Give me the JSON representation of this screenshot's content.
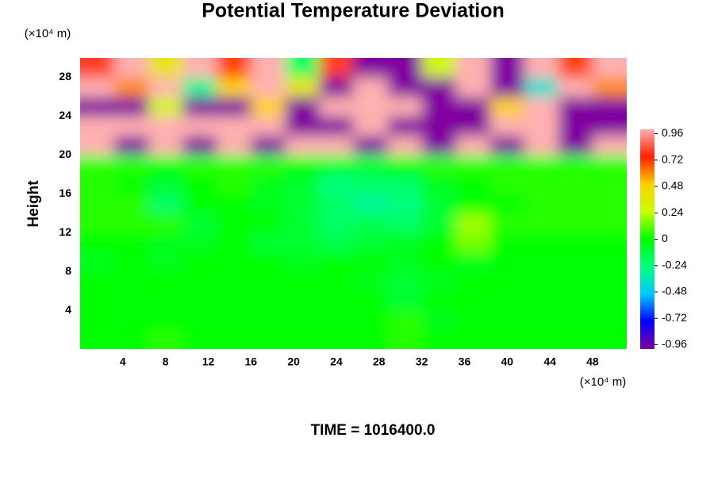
{
  "chart_data": {
    "type": "heatmap",
    "title": "Potential Temperature Deviation",
    "y_unit": "(×10⁴ m)",
    "x_unit": "(×10⁴ m)",
    "ylabel": "Height",
    "caption": "TIME = 1016400.0",
    "xlim": [
      0,
      51.2
    ],
    "ylim": [
      0,
      30
    ],
    "xticks": [
      4,
      8,
      12,
      16,
      20,
      24,
      28,
      32,
      36,
      40,
      44,
      48
    ],
    "yticks": [
      4,
      8,
      12,
      16,
      20,
      24,
      28
    ],
    "xbins": [
      0,
      3.2,
      6.4,
      9.6,
      12.8,
      16,
      19.2,
      22.4,
      25.6,
      28.8,
      32,
      35.2,
      38.4,
      41.6,
      44.8,
      48,
      51.2
    ],
    "ybins": [
      0,
      2,
      4,
      6,
      8,
      10,
      12,
      14,
      16,
      18,
      20,
      22,
      24,
      26,
      28,
      30
    ],
    "z": [
      [
        0,
        0,
        0.05,
        0,
        0,
        0,
        0,
        0,
        0,
        0.05,
        0,
        0,
        0,
        0,
        0,
        0
      ],
      [
        0,
        0,
        0,
        0,
        0,
        0,
        0,
        0,
        0,
        0.05,
        -0.05,
        0,
        0,
        0,
        0,
        0
      ],
      [
        0,
        0,
        0,
        0,
        0,
        0,
        0,
        0,
        0,
        -0.1,
        0,
        0,
        0,
        0,
        0,
        0
      ],
      [
        0,
        0,
        0,
        0,
        0,
        0,
        0,
        0,
        -0.05,
        -0.1,
        -0.05,
        0,
        0,
        0,
        0,
        0
      ],
      [
        -0.05,
        0,
        -0.05,
        0,
        0,
        0,
        -0.05,
        0,
        0,
        -0.05,
        0,
        -0.05,
        0,
        0,
        0,
        0
      ],
      [
        0,
        0,
        -0.05,
        -0.05,
        0,
        -0.1,
        -0.1,
        -0.15,
        -0.1,
        -0.05,
        0,
        0.15,
        0,
        0,
        0,
        0
      ],
      [
        0.05,
        0.05,
        0.05,
        -0.1,
        0,
        0,
        -0.1,
        -0.2,
        -0.15,
        -0.2,
        -0.1,
        0.2,
        0.05,
        0.05,
        0.05,
        0.05
      ],
      [
        0.05,
        0.05,
        -0.2,
        0,
        0,
        -0.05,
        -0.1,
        -0.2,
        -0.3,
        -0.25,
        -0.1,
        0,
        0,
        0.05,
        0.05,
        0.05
      ],
      [
        0.05,
        0,
        -0.1,
        0,
        0.05,
        -0.05,
        -0.1,
        -0.25,
        -0.2,
        -0.2,
        -0.05,
        0,
        0.05,
        0.05,
        0.05,
        0.05
      ],
      [
        0.05,
        0.05,
        0,
        0.05,
        0.05,
        0.05,
        0,
        -0.1,
        -0.1,
        0,
        0.05,
        0.05,
        0.05,
        0.05,
        0.05,
        0.05
      ],
      [
        1,
        -1,
        1,
        -1,
        1,
        -1,
        1,
        1,
        -1,
        1,
        -1,
        1,
        -1,
        1,
        -1,
        1
      ],
      [
        1,
        1,
        1,
        1,
        1,
        1,
        -1,
        -1,
        1,
        -1,
        -1,
        -1,
        1,
        1,
        -1,
        -1
      ],
      [
        -1,
        -1,
        0.3,
        -1,
        -1,
        0.5,
        -1,
        1,
        1,
        1,
        -1,
        -1,
        0.5,
        1,
        -1,
        -1
      ],
      [
        1,
        0.6,
        1,
        -0.3,
        0.5,
        1,
        0.4,
        -1,
        1,
        -1,
        -1,
        1,
        -1,
        -0.4,
        1,
        0.6
      ],
      [
        0.8,
        1,
        0.4,
        1,
        0.7,
        1,
        -0.2,
        0.8,
        -1,
        -1,
        0.3,
        1,
        -1,
        1,
        0.7,
        1
      ]
    ],
    "clim": [
      -1,
      1
    ],
    "cticks": [
      {
        "value": -0.96,
        "label": "-0.96"
      },
      {
        "value": -0.72,
        "label": "-0.72"
      },
      {
        "value": -0.48,
        "label": "-0.48"
      },
      {
        "value": -0.24,
        "label": "-0.24"
      },
      0,
      {
        "value": 0.24,
        "label": "0.24"
      },
      {
        "value": 0.48,
        "label": "0.48"
      },
      {
        "value": 0.72,
        "label": "0.72"
      },
      {
        "value": 0.96,
        "label": "0.96"
      }
    ],
    "colormap": [
      "#8000a0",
      "#0000ff",
      "#00c8ff",
      "#00ff80",
      "#00ff00",
      "#c8ff00",
      "#ffd000",
      "#ff2000",
      "#ffb0b0"
    ]
  }
}
